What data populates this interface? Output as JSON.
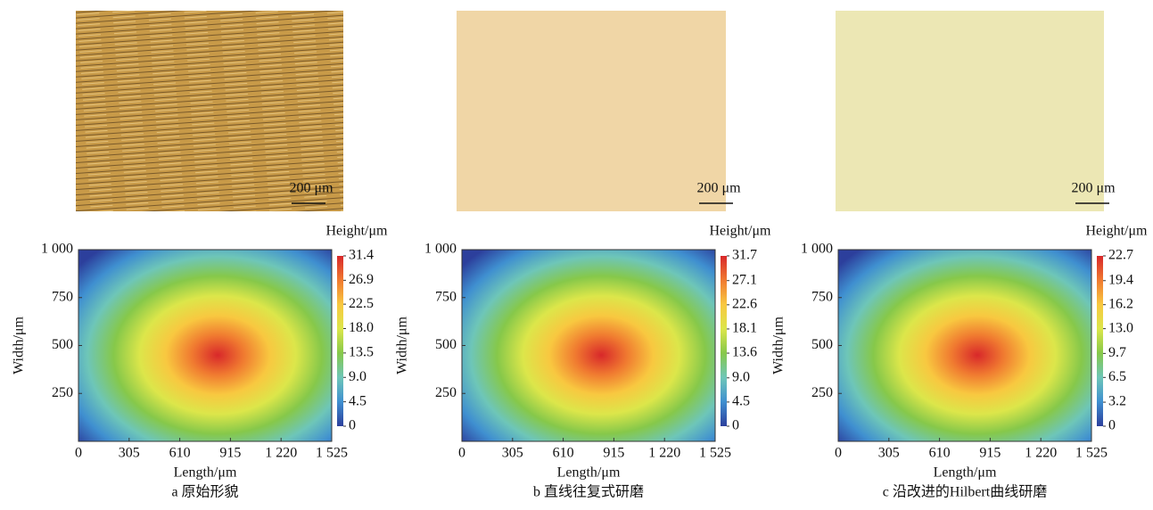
{
  "chart_data": [
    {
      "type": "heatmap",
      "scale_bar": "200 μm",
      "xlabel": "Length/μm",
      "ylabel": "Width/μm",
      "colorbar_label": "Height/μm",
      "caption": "a 原始形貌",
      "xlim": [
        0,
        1525
      ],
      "xticks": [
        0,
        305,
        610,
        915,
        {
          "value": 1220,
          "label": "1 220"
        },
        {
          "value": 1525,
          "label": "1 525"
        }
      ],
      "ylim": [
        0,
        1000
      ],
      "yticks": [
        250,
        500,
        750,
        {
          "value": 1000,
          "label": "1 000"
        }
      ],
      "clim": [
        0,
        31.4
      ],
      "cticks": [
        0,
        4.5,
        {
          "value": 9,
          "label": "9.0"
        },
        13.5,
        {
          "value": 18,
          "label": "18.0"
        },
        22.5,
        26.9,
        31.4
      ],
      "colorscale": [
        "#2c3f9c",
        "#3f8fd0",
        "#6ec6b8",
        "#86c84a",
        "#dce64a",
        "#f8c840",
        "#f07a30",
        "#d8282a"
      ]
    },
    {
      "type": "heatmap",
      "scale_bar": "200 μm",
      "xlabel": "Length/μm",
      "ylabel": "Width/μm",
      "colorbar_label": "Height/μm",
      "caption": "b 直线往复式研磨",
      "xlim": [
        0,
        1525
      ],
      "xticks": [
        0,
        305,
        610,
        915,
        {
          "value": 1220,
          "label": "1 220"
        },
        {
          "value": 1525,
          "label": "1 525"
        }
      ],
      "ylim": [
        0,
        1000
      ],
      "yticks": [
        250,
        500,
        750,
        {
          "value": 1000,
          "label": "1 000"
        }
      ],
      "clim": [
        0,
        31.7
      ],
      "cticks": [
        0,
        4.5,
        {
          "value": 9,
          "label": "9.0"
        },
        13.6,
        18.1,
        22.6,
        27.1,
        31.7
      ],
      "colorscale": [
        "#2c3f9c",
        "#3f8fd0",
        "#6ec6b8",
        "#86c84a",
        "#dce64a",
        "#f8c840",
        "#f07a30",
        "#d8282a"
      ]
    },
    {
      "type": "heatmap",
      "scale_bar": "200 μm",
      "xlabel": "Length/μm",
      "ylabel": "Width/μm",
      "colorbar_label": "Height/μm",
      "caption": "c 沿改进的Hilbert曲线研磨",
      "xlim": [
        0,
        1525
      ],
      "xticks": [
        0,
        305,
        610,
        915,
        {
          "value": 1220,
          "label": "1 220"
        },
        {
          "value": 1525,
          "label": "1 525"
        }
      ],
      "ylim": [
        0,
        1000
      ],
      "yticks": [
        250,
        500,
        750,
        {
          "value": 1000,
          "label": "1 000"
        }
      ],
      "clim": [
        0,
        22.7
      ],
      "cticks": [
        0,
        3.2,
        6.5,
        9.7,
        {
          "value": 13,
          "label": "13.0"
        },
        16.2,
        19.4,
        22.7
      ],
      "colorscale": [
        "#2c3f9c",
        "#3f8fd0",
        "#6ec6b8",
        "#86c84a",
        "#dce64a",
        "#f8c840",
        "#f07a30",
        "#d8282a"
      ]
    }
  ]
}
